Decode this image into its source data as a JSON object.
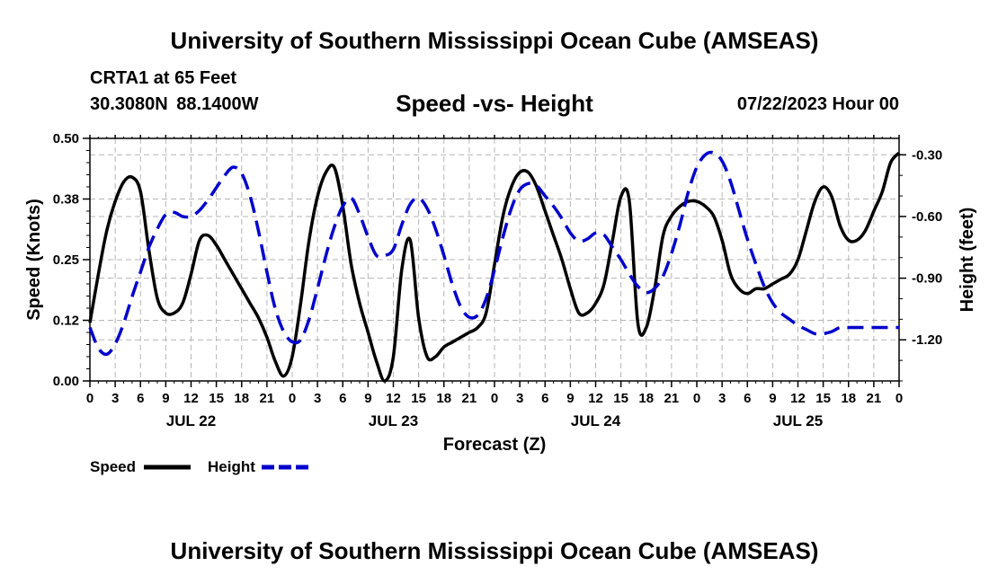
{
  "header": {
    "title": "University of Southern Mississippi Ocean Cube (AMSEAS)",
    "station": "CRTA1 at 65 Feet",
    "coordinates": "30.3080N  88.1400W",
    "chart_title": "Speed -vs- Height",
    "date": "07/22/2023 Hour 00"
  },
  "footer": {
    "title": "University of Southern Mississippi Ocean Cube (AMSEAS)"
  },
  "colors": {
    "speed": "#000000",
    "height": "#0000cc",
    "grid": "#b4b4b4"
  },
  "chart_data": {
    "type": "line",
    "title": "Speed -vs- Height",
    "xlabel": "Forecast (Z)",
    "ylabel": "Speed (Knots)",
    "y2label": "Height (feet)",
    "xlim": [
      0,
      96
    ],
    "ylim": [
      0,
      0.5
    ],
    "y2lim": [
      -1.4,
      -0.22
    ],
    "grid": true,
    "yticks": [
      "0.00",
      "0.12",
      "0.25",
      "0.38",
      "0.50"
    ],
    "ytick_values": [
      0,
      0.125,
      0.25,
      0.375,
      0.5
    ],
    "y2ticks": [
      "-1.20",
      "-0.90",
      "-0.60",
      "-0.30"
    ],
    "y2tick_values": [
      -1.2,
      -0.9,
      -0.6,
      -0.3
    ],
    "xticks": [
      "0",
      "3",
      "6",
      "9",
      "12",
      "15",
      "18",
      "21",
      "0",
      "3",
      "6",
      "9",
      "12",
      "15",
      "18",
      "21",
      "0",
      "3",
      "6",
      "9",
      "12",
      "15",
      "18",
      "21",
      "0",
      "3",
      "6",
      "9",
      "12",
      "15",
      "18",
      "21",
      "0"
    ],
    "day_labels": [
      {
        "label": "JUL 22",
        "hour": 12
      },
      {
        "label": "JUL 23",
        "hour": 36
      },
      {
        "label": "JUL 24",
        "hour": 60
      },
      {
        "label": "JUL 25",
        "hour": 84
      }
    ],
    "legend": [
      {
        "name": "Speed",
        "style": "solid"
      },
      {
        "name": "Height",
        "style": "dashed"
      }
    ],
    "series": [
      {
        "name": "Speed",
        "axis": "left",
        "x": [
          0,
          1,
          2,
          3,
          4,
          5,
          6,
          7,
          8,
          9,
          10,
          11,
          12,
          13,
          14,
          15,
          16,
          17,
          18,
          19,
          20,
          21,
          22,
          23,
          24,
          25,
          26,
          27,
          28,
          29,
          30,
          31,
          32,
          33,
          34,
          35,
          36,
          37,
          38,
          39,
          40,
          41,
          42,
          43,
          44,
          45,
          46,
          47,
          48,
          49,
          50,
          51,
          52,
          53,
          54,
          55,
          56,
          57,
          58,
          59,
          60,
          61,
          62,
          63,
          64,
          65,
          66,
          67,
          68,
          69,
          70,
          71,
          72,
          73,
          74,
          75,
          76,
          77,
          78,
          79,
          80,
          81,
          82,
          83,
          84,
          85,
          86,
          87,
          88,
          89,
          90,
          91,
          92,
          93,
          94,
          95,
          96
        ],
        "values": [
          0.12,
          0.22,
          0.31,
          0.37,
          0.41,
          0.42,
          0.39,
          0.27,
          0.17,
          0.14,
          0.14,
          0.16,
          0.22,
          0.29,
          0.3,
          0.28,
          0.25,
          0.22,
          0.19,
          0.16,
          0.13,
          0.09,
          0.04,
          0.01,
          0.05,
          0.16,
          0.29,
          0.38,
          0.43,
          0.44,
          0.36,
          0.24,
          0.16,
          0.1,
          0.04,
          0.0,
          0.05,
          0.23,
          0.29,
          0.13,
          0.05,
          0.05,
          0.07,
          0.08,
          0.09,
          0.1,
          0.11,
          0.14,
          0.24,
          0.34,
          0.4,
          0.43,
          0.43,
          0.4,
          0.35,
          0.3,
          0.25,
          0.19,
          0.14,
          0.14,
          0.16,
          0.2,
          0.29,
          0.38,
          0.37,
          0.12,
          0.11,
          0.19,
          0.3,
          0.34,
          0.36,
          0.37,
          0.37,
          0.36,
          0.34,
          0.29,
          0.22,
          0.19,
          0.18,
          0.19,
          0.19,
          0.2,
          0.21,
          0.22,
          0.25,
          0.31,
          0.37,
          0.4,
          0.38,
          0.32,
          0.29,
          0.29,
          0.31,
          0.35,
          0.39,
          0.45,
          0.47
        ]
      },
      {
        "name": "Height",
        "axis": "right",
        "x": [
          0,
          1,
          2,
          3,
          4,
          5,
          6,
          7,
          8,
          9,
          10,
          11,
          12,
          13,
          14,
          15,
          16,
          17,
          18,
          19,
          20,
          21,
          22,
          23,
          24,
          25,
          26,
          27,
          28,
          29,
          30,
          31,
          32,
          33,
          34,
          35,
          36,
          37,
          38,
          39,
          40,
          41,
          42,
          43,
          44,
          45,
          46,
          47,
          48,
          49,
          50,
          51,
          52,
          53,
          54,
          55,
          56,
          57,
          58,
          59,
          60,
          61,
          62,
          63,
          64,
          65,
          66,
          67,
          68,
          69,
          70,
          71,
          72,
          73,
          74,
          75,
          76,
          77,
          78,
          79,
          80,
          81,
          82,
          83,
          84,
          85,
          86,
          87,
          88,
          89,
          90,
          91,
          92,
          93,
          94,
          95,
          96
        ],
        "values": [
          -1.14,
          -1.24,
          -1.27,
          -1.22,
          -1.12,
          -0.99,
          -0.87,
          -0.75,
          -0.66,
          -0.59,
          -0.58,
          -0.6,
          -0.6,
          -0.57,
          -0.52,
          -0.46,
          -0.4,
          -0.36,
          -0.39,
          -0.5,
          -0.67,
          -0.87,
          -1.05,
          -1.16,
          -1.21,
          -1.2,
          -1.1,
          -0.95,
          -0.79,
          -0.65,
          -0.55,
          -0.51,
          -0.59,
          -0.7,
          -0.79,
          -0.79,
          -0.76,
          -0.64,
          -0.54,
          -0.51,
          -0.56,
          -0.66,
          -0.79,
          -0.93,
          -1.04,
          -1.09,
          -1.08,
          -1.0,
          -0.86,
          -0.7,
          -0.56,
          -0.47,
          -0.44,
          -0.45,
          -0.5,
          -0.55,
          -0.61,
          -0.68,
          -0.72,
          -0.71,
          -0.68,
          -0.69,
          -0.75,
          -0.81,
          -0.88,
          -0.94,
          -0.97,
          -0.95,
          -0.89,
          -0.78,
          -0.64,
          -0.48,
          -0.36,
          -0.3,
          -0.29,
          -0.33,
          -0.43,
          -0.57,
          -0.71,
          -0.83,
          -0.94,
          -1.02,
          -1.07,
          -1.1,
          -1.13,
          -1.15,
          -1.17,
          -1.17,
          -1.16,
          -1.14,
          -1.14,
          -1.14,
          -1.14,
          -1.14,
          -1.14,
          -1.14,
          -1.14
        ]
      }
    ]
  }
}
